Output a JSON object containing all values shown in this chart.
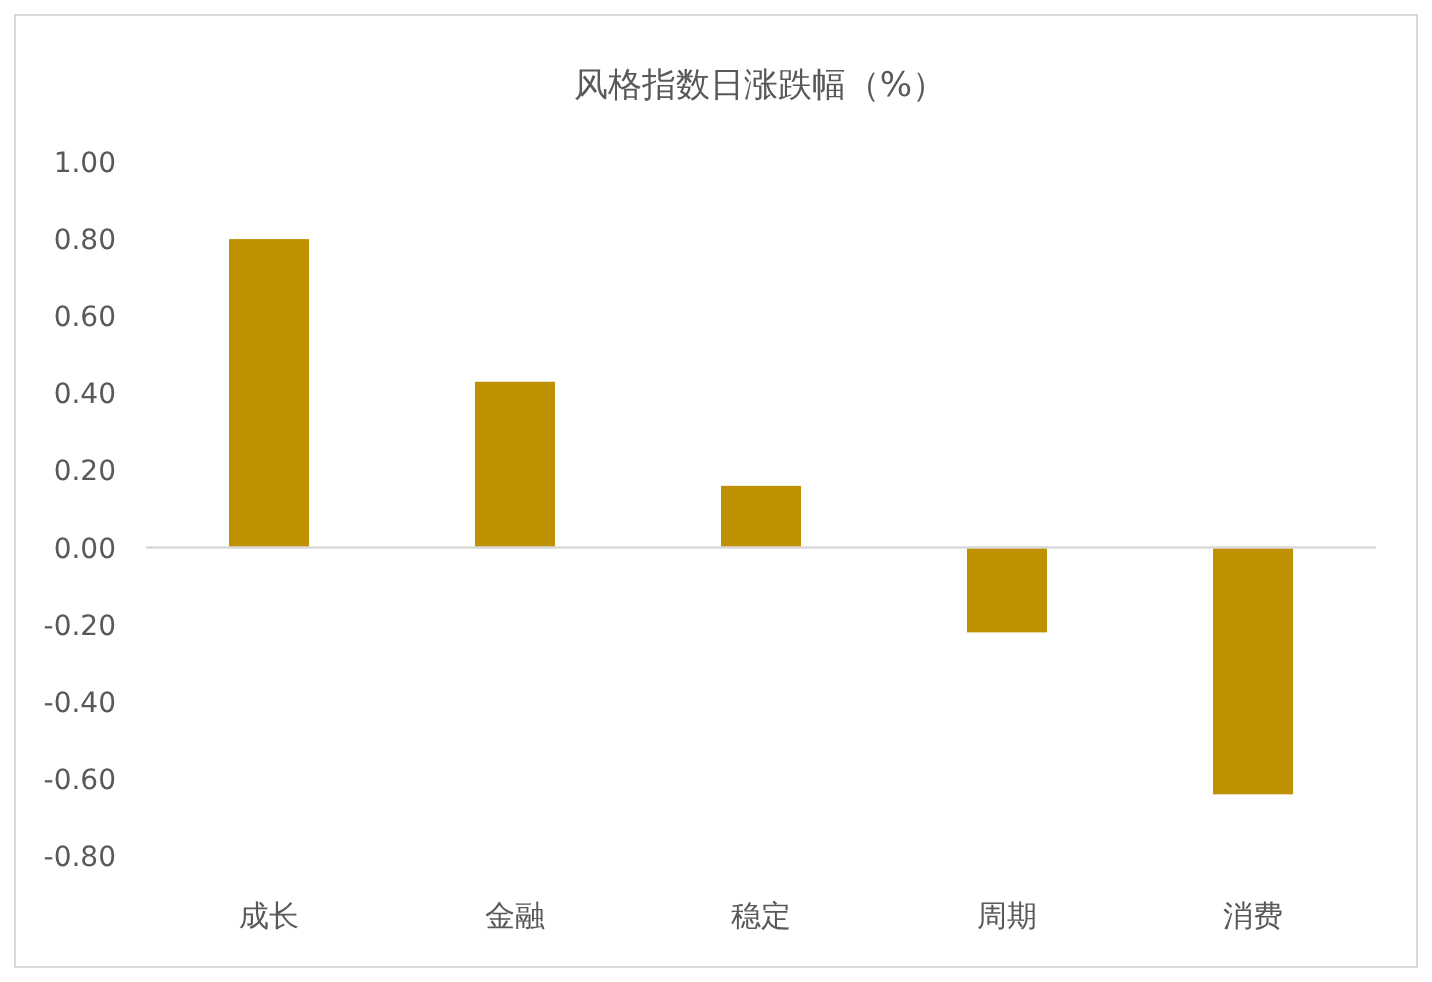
{
  "chart_data": {
    "type": "bar",
    "title": "风格指数日涨跌幅（%）",
    "categories": [
      "成长",
      "金融",
      "稳定",
      "周期",
      "消费"
    ],
    "values": [
      0.8,
      0.43,
      0.16,
      -0.22,
      -0.64
    ],
    "color": "#bf9000",
    "ylim": [
      -0.8,
      1.0
    ],
    "yticks": [
      {
        "value": 1.0,
        "label": "1.00"
      },
      {
        "value": 0.8,
        "label": "0.80"
      },
      {
        "value": 0.6,
        "label": "0.60"
      },
      {
        "value": 0.4,
        "label": "0.40"
      },
      {
        "value": 0.2,
        "label": "0.20"
      },
      {
        "value": 0,
        "label": "0.00"
      },
      {
        "value": -0.2,
        "label": "-0.20"
      },
      {
        "value": -0.4,
        "label": "-0.40"
      },
      {
        "value": -0.6,
        "label": "-0.60"
      },
      {
        "value": -0.8,
        "label": "-0.80"
      }
    ]
  }
}
